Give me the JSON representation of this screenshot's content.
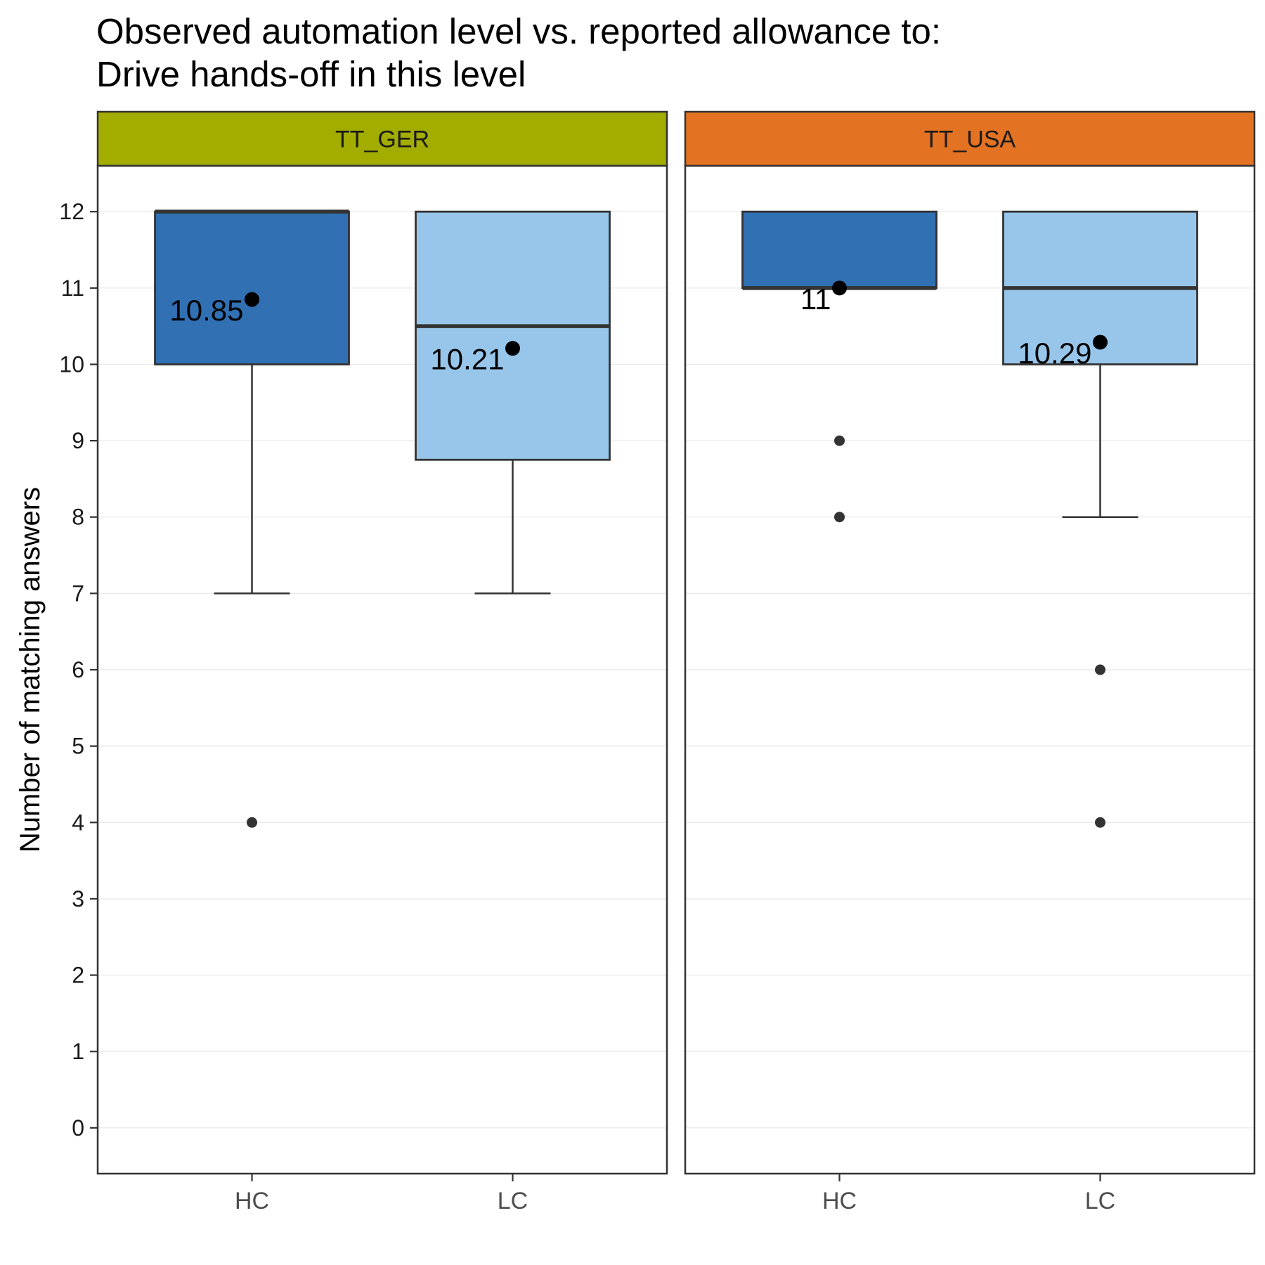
{
  "chart_data": {
    "type": "boxplot",
    "title": "Observed automation level vs. reported allowance to:",
    "subtitle": "Drive hands-off in this level",
    "ylabel": "Number of matching answers",
    "xlabel": "",
    "ylim": [
      -0.6,
      12.6
    ],
    "yticks": [
      0,
      1,
      2,
      3,
      4,
      5,
      6,
      7,
      8,
      9,
      10,
      11,
      12
    ],
    "categories": [
      "HC",
      "LC"
    ],
    "grid": true,
    "category_colors": {
      "HC": "#3070b3",
      "LC": "#98c6ea"
    },
    "facets": [
      {
        "label": "TT_GER",
        "strip_color": "#a2ad00",
        "boxes": [
          {
            "category": "HC",
            "whisker_low": 7,
            "q1": 10,
            "median": 12,
            "q3": 12,
            "whisker_high": 12,
            "mean": 10.85,
            "mean_label": "10.85",
            "outliers": [
              4
            ]
          },
          {
            "category": "LC",
            "whisker_low": 7,
            "q1": 8.75,
            "median": 10.5,
            "q3": 12,
            "whisker_high": 12,
            "mean": 10.21,
            "mean_label": "10.21",
            "outliers": []
          }
        ]
      },
      {
        "label": "TT_USA",
        "strip_color": "#e37222",
        "boxes": [
          {
            "category": "HC",
            "whisker_low": 11,
            "q1": 11,
            "median": 11,
            "q3": 12,
            "whisker_high": 12,
            "mean": 11,
            "mean_label": "11",
            "outliers": [
              9,
              8
            ]
          },
          {
            "category": "LC",
            "whisker_low": 8,
            "q1": 10,
            "median": 11,
            "q3": 12,
            "whisker_high": 12,
            "mean": 10.29,
            "mean_label": "10.29",
            "outliers": [
              6,
              4
            ]
          }
        ]
      }
    ]
  }
}
